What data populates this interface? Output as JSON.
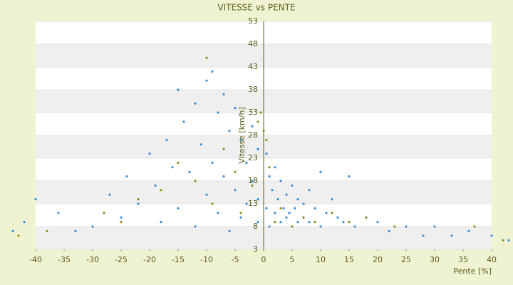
{
  "chart_data": {
    "type": "scatter",
    "title": "VITESSE vs PENTE",
    "x_label": "Pente [%]",
    "y_label": "Vitesse [km/h]",
    "xlim": [
      -40,
      40
    ],
    "xticks": [
      -40,
      -35,
      -30,
      -25,
      -20,
      -15,
      -10,
      -5,
      0,
      5,
      10,
      15,
      20,
      25,
      30,
      35,
      40
    ],
    "ylim": [
      3,
      53
    ],
    "yticks": [
      3,
      8,
      13,
      18,
      23,
      28,
      33,
      38,
      43,
      48,
      53
    ],
    "grid": true,
    "series": [
      {
        "color": "#3a8fd9",
        "x": [
          -44,
          -42,
          -40,
          -36,
          -33,
          -30,
          -27,
          -25,
          -24,
          -22,
          -20,
          -19,
          -18,
          -17,
          -16,
          -15,
          -15,
          -14,
          -13,
          -12,
          -12,
          -11,
          -10,
          -10,
          -9,
          -9,
          -8,
          -8,
          -7,
          -7,
          -6,
          -6,
          -5,
          -5,
          -4,
          -4,
          -3,
          -3,
          -2,
          -2,
          -1,
          -1,
          -1,
          0.5,
          0.5,
          1,
          1,
          1.5,
          2,
          2,
          2.5,
          3,
          3,
          3.5,
          4,
          4,
          4.5,
          5,
          5,
          5.5,
          6,
          6,
          7,
          7,
          8,
          8,
          9,
          10,
          10,
          11,
          12,
          13,
          14,
          15,
          16,
          18,
          20,
          22,
          25,
          28,
          30,
          33,
          36,
          40,
          43
        ],
        "values": [
          7,
          9,
          14,
          11,
          7,
          8,
          15,
          10,
          19,
          13,
          24,
          17,
          9,
          27,
          21,
          38,
          12,
          31,
          20,
          35,
          8,
          26,
          40,
          15,
          42,
          22,
          33,
          11,
          37,
          19,
          29,
          7,
          34,
          16,
          27,
          10,
          22,
          13,
          30,
          18,
          25,
          9,
          14,
          24,
          12,
          19,
          8,
          16,
          21,
          11,
          14,
          18,
          9,
          12,
          15,
          10,
          11,
          17,
          8,
          12,
          14,
          9,
          13,
          10,
          16,
          9,
          12,
          20,
          8,
          11,
          14,
          10,
          9,
          19,
          8,
          10,
          9,
          7,
          8,
          6,
          8,
          6,
          7,
          6,
          5
        ]
      },
      {
        "color": "#8f8f1e",
        "x": [
          -43,
          -38,
          -28,
          -25,
          -22,
          -18,
          -15,
          -12,
          -10,
          -9,
          -7,
          -5,
          -4,
          -2,
          -1,
          -0.5,
          0,
          0.5,
          1,
          2,
          3,
          5,
          7,
          9,
          12,
          15,
          18,
          23,
          37,
          42
        ],
        "values": [
          6,
          7,
          11,
          9,
          14,
          16,
          22,
          18,
          45,
          13,
          25,
          20,
          11,
          17,
          31,
          33,
          29,
          27,
          21,
          9,
          12,
          8,
          10,
          9,
          11,
          9,
          10,
          8,
          8,
          5
        ]
      }
    ]
  }
}
